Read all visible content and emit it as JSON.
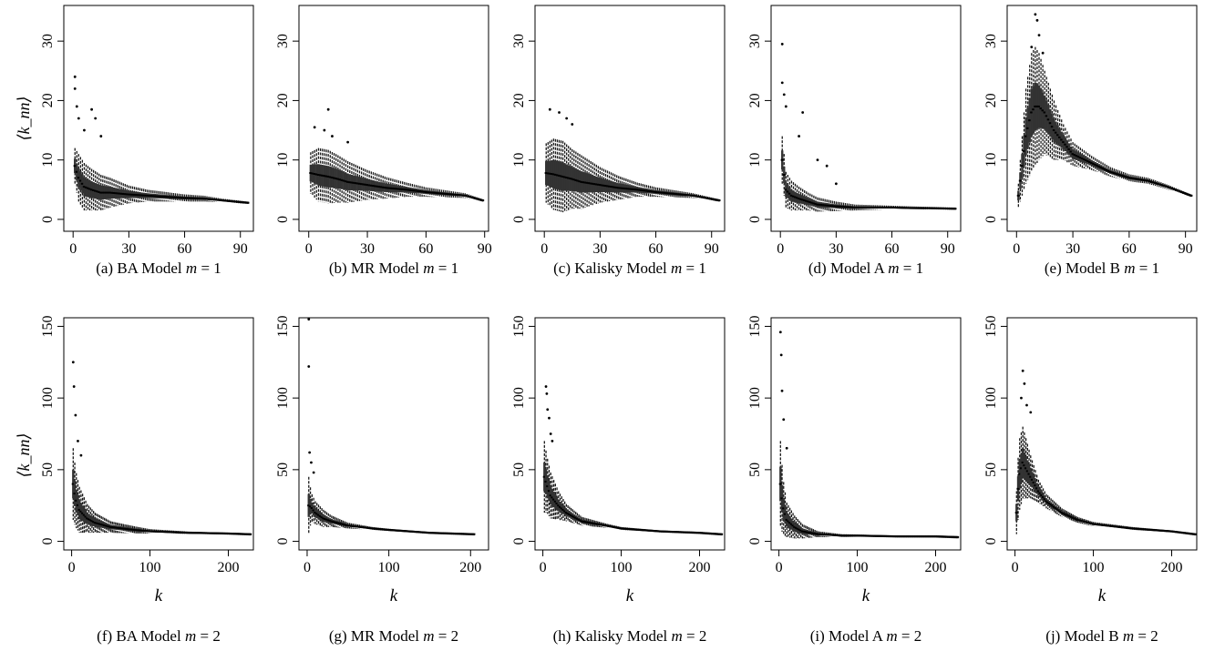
{
  "figure": {
    "rows": [
      {
        "ylabel": "⟨k_nn⟩",
        "xlabel": "",
        "xlim": [
          -5,
          97
        ],
        "ylim": [
          -2,
          36
        ],
        "xticks": [
          0,
          30,
          60,
          90
        ],
        "yticks": [
          0,
          10,
          20,
          30
        ]
      },
      {
        "ylabel": "⟨k_nn⟩",
        "xlabel": "k",
        "xlim": [
          -10,
          232
        ],
        "ylim": [
          -6,
          156
        ],
        "xticks": [
          0,
          100,
          200
        ],
        "yticks": [
          0,
          50,
          100,
          150
        ]
      }
    ]
  },
  "chart_data": [
    {
      "type": "box",
      "caption_prefix": "(a)",
      "caption_model": "BA Model",
      "caption_m": "1",
      "xlim": [
        -5,
        97
      ],
      "ylim": [
        -2,
        36
      ],
      "x": [
        1,
        3,
        6,
        10,
        15,
        20,
        30,
        40,
        50,
        60,
        70,
        80,
        94
      ],
      "median": [
        9,
        7,
        5.5,
        5,
        4.5,
        4.5,
        4.2,
        4,
        3.8,
        3.6,
        3.5,
        3.2,
        2.8
      ],
      "spread": [
        3,
        4,
        4,
        3.5,
        3,
        2.5,
        1.5,
        1,
        0.8,
        0.6,
        0.5,
        0.3,
        0.2
      ],
      "outliers": [
        [
          1,
          24
        ],
        [
          1,
          22
        ],
        [
          2,
          19
        ],
        [
          3,
          17
        ],
        [
          10,
          18.5
        ],
        [
          12,
          17
        ],
        [
          6,
          15
        ],
        [
          15,
          14
        ]
      ]
    },
    {
      "type": "box",
      "caption_prefix": "(b)",
      "caption_model": "MR Model",
      "caption_m": "1",
      "xlim": [
        -5,
        92
      ],
      "ylim": [
        -2,
        36
      ],
      "x": [
        1,
        5,
        10,
        15,
        20,
        30,
        40,
        50,
        60,
        70,
        80,
        89
      ],
      "median": [
        7.8,
        7.5,
        7.2,
        6.8,
        6.3,
        5.8,
        5.3,
        5,
        4.6,
        4.3,
        4,
        3.2
      ],
      "spread": [
        3.5,
        4.5,
        4.5,
        4,
        3.5,
        2.5,
        1.8,
        1.2,
        0.8,
        0.6,
        0.4,
        0.2
      ],
      "outliers": [
        [
          10,
          18.5
        ],
        [
          3,
          15.5
        ],
        [
          8,
          15
        ],
        [
          12,
          14
        ],
        [
          20,
          13
        ]
      ]
    },
    {
      "type": "box",
      "caption_prefix": "(c)",
      "caption_model": "Kalisky Model",
      "caption_m": "1",
      "xlim": [
        -5,
        97
      ],
      "ylim": [
        -2,
        36
      ],
      "x": [
        1,
        5,
        10,
        15,
        20,
        30,
        40,
        50,
        60,
        70,
        80,
        94
      ],
      "median": [
        7.8,
        7.6,
        7.2,
        6.8,
        6.3,
        5.8,
        5.3,
        5,
        4.6,
        4.3,
        4,
        3.2
      ],
      "spread": [
        5,
        6,
        6,
        5,
        4.5,
        3,
        2,
        1.2,
        0.8,
        0.6,
        0.4,
        0.2
      ],
      "outliers": [
        [
          3,
          18.5
        ],
        [
          8,
          18
        ],
        [
          12,
          17
        ],
        [
          15,
          16
        ]
      ]
    },
    {
      "type": "box",
      "caption_prefix": "(d)",
      "caption_model": "Model A",
      "caption_m": "1",
      "xlim": [
        -5,
        97
      ],
      "ylim": [
        -2,
        36
      ],
      "x": [
        1,
        3,
        6,
        10,
        15,
        20,
        30,
        40,
        50,
        60,
        70,
        80,
        94
      ],
      "median": [
        10,
        5,
        4,
        3.5,
        3,
        2.5,
        2.2,
        2,
        2,
        2,
        1.9,
        1.9,
        1.8
      ],
      "spread": [
        4,
        3,
        2.5,
        2,
        1.5,
        1.2,
        0.8,
        0.5,
        0.4,
        0.3,
        0.3,
        0.2,
        0.2
      ],
      "outliers": [
        [
          1,
          29.5
        ],
        [
          1,
          23
        ],
        [
          2,
          21
        ],
        [
          3,
          19
        ],
        [
          12,
          18
        ],
        [
          10,
          14
        ],
        [
          20,
          10
        ],
        [
          25,
          9
        ],
        [
          30,
          6
        ]
      ]
    },
    {
      "type": "box",
      "caption_prefix": "(e)",
      "caption_model": "Model B",
      "caption_m": "1",
      "xlim": [
        -5,
        96
      ],
      "ylim": [
        -2,
        36
      ],
      "x": [
        1,
        3,
        5,
        8,
        10,
        12,
        15,
        20,
        25,
        30,
        40,
        50,
        60,
        70,
        80,
        93
      ],
      "median": [
        4,
        9,
        14,
        18,
        19,
        19,
        18,
        15,
        13,
        11,
        9.5,
        8,
        7,
        6.5,
        5.5,
        4
      ],
      "spread": [
        2,
        5,
        8,
        10,
        10,
        9,
        7,
        5,
        3,
        2,
        1.2,
        0.8,
        0.6,
        0.5,
        0.4,
        0.2
      ],
      "outliers": [
        [
          10,
          34.5
        ],
        [
          11,
          33.5
        ],
        [
          12,
          31
        ],
        [
          8,
          29
        ],
        [
          14,
          28
        ]
      ]
    },
    {
      "type": "box",
      "caption_prefix": "(f)",
      "caption_model": "BA Model",
      "caption_m": "2",
      "xlim": [
        -10,
        232
      ],
      "ylim": [
        -6,
        156
      ],
      "x": [
        2,
        5,
        10,
        20,
        30,
        50,
        80,
        100,
        150,
        200,
        228
      ],
      "median": [
        40,
        30,
        22,
        16,
        13,
        10,
        8,
        7,
        6,
        5.5,
        5
      ],
      "spread": [
        25,
        20,
        16,
        10,
        7,
        4,
        2.5,
        1.5,
        0.8,
        0.5,
        0.3
      ],
      "outliers": [
        [
          2,
          125
        ],
        [
          3,
          108
        ],
        [
          5,
          88
        ],
        [
          8,
          70
        ],
        [
          12,
          60
        ]
      ]
    },
    {
      "type": "box",
      "caption_prefix": "(g)",
      "caption_model": "MR Model",
      "caption_m": "2",
      "xlim": [
        -10,
        222
      ],
      "ylim": [
        -6,
        156
      ],
      "x": [
        2,
        5,
        10,
        20,
        30,
        50,
        80,
        100,
        150,
        205
      ],
      "median": [
        25,
        24,
        20,
        16,
        14,
        11,
        9,
        8,
        6,
        5
      ],
      "spread": [
        20,
        10,
        8,
        6,
        4,
        2,
        1,
        0.8,
        0.5,
        0.3
      ],
      "outliers": [
        [
          2,
          155
        ],
        [
          2,
          122
        ],
        [
          3,
          62
        ],
        [
          5,
          55
        ],
        [
          8,
          48
        ]
      ]
    },
    {
      "type": "box",
      "caption_prefix": "(h)",
      "caption_model": "Kalisky Model",
      "caption_m": "2",
      "xlim": [
        -10,
        232
      ],
      "ylim": [
        -6,
        156
      ],
      "x": [
        2,
        5,
        10,
        20,
        30,
        50,
        80,
        100,
        150,
        200,
        228
      ],
      "median": [
        45,
        40,
        32,
        25,
        20,
        14,
        11,
        9,
        7,
        6,
        5
      ],
      "spread": [
        25,
        20,
        16,
        10,
        6,
        3,
        1.5,
        1,
        0.6,
        0.4,
        0.3
      ],
      "outliers": [
        [
          4,
          108
        ],
        [
          5,
          103
        ],
        [
          6,
          92
        ],
        [
          8,
          86
        ],
        [
          10,
          75
        ],
        [
          12,
          70
        ]
      ]
    },
    {
      "type": "box",
      "caption_prefix": "(i)",
      "caption_model": "Model A",
      "caption_m": "2",
      "xlim": [
        -10,
        232
      ],
      "ylim": [
        -6,
        156
      ],
      "x": [
        2,
        5,
        10,
        20,
        30,
        50,
        80,
        100,
        150,
        200,
        228
      ],
      "median": [
        40,
        25,
        15,
        10,
        7,
        5,
        4,
        4,
        3.5,
        3.5,
        3
      ],
      "spread": [
        30,
        20,
        12,
        8,
        5,
        2,
        1,
        0.8,
        0.5,
        0.3,
        0.2
      ],
      "outliers": [
        [
          2,
          146
        ],
        [
          3,
          130
        ],
        [
          4,
          105
        ],
        [
          6,
          85
        ],
        [
          10,
          65
        ]
      ]
    },
    {
      "type": "box",
      "caption_prefix": "(j)",
      "caption_model": "Model B",
      "caption_m": "2",
      "xlim": [
        -10,
        232
      ],
      "ylim": [
        -6,
        156
      ],
      "x": [
        2,
        5,
        10,
        15,
        20,
        30,
        40,
        60,
        80,
        100,
        150,
        200,
        230
      ],
      "median": [
        20,
        45,
        55,
        50,
        45,
        35,
        28,
        20,
        15,
        12,
        9,
        7,
        5
      ],
      "spread": [
        15,
        25,
        25,
        20,
        15,
        8,
        5,
        3,
        2,
        1.5,
        1,
        0.6,
        0.3
      ],
      "outliers": [
        [
          10,
          119
        ],
        [
          12,
          110
        ],
        [
          8,
          100
        ],
        [
          15,
          95
        ],
        [
          20,
          90
        ]
      ]
    }
  ]
}
